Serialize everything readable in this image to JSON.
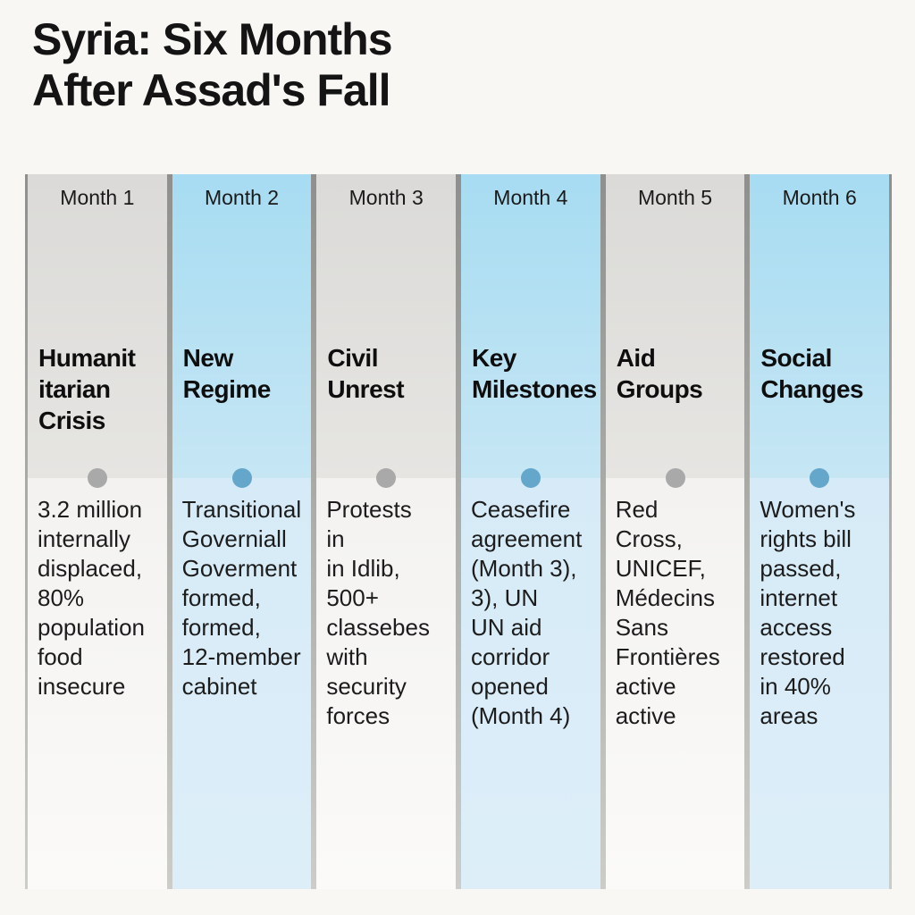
{
  "title": "Syria: Six Months\nAfter Assad's Fall",
  "columns": [
    {
      "month": "Month 1",
      "theme": "gray",
      "heading": "Humanit\nitarian\nCrisis",
      "body": "3.2 million\ninternally\ndisplaced,\n80%\npopulation\nfood\ninsecure"
    },
    {
      "month": "Month 2",
      "theme": "blue",
      "heading": "New\nRegime",
      "body": "Transitional\nGoverniall\nGoverment\nformed,\nformed,\n12-member\ncabinet"
    },
    {
      "month": "Month 3",
      "theme": "gray",
      "heading": "Civil\nUnrest",
      "body": "Protests\nin\nin Idlib,\n500+\nclassebes\nwith\nsecurity\nforces"
    },
    {
      "month": "Month 4",
      "theme": "blue",
      "heading": "Key\nMilestones",
      "body": "Ceasefire\nagreement\n(Month 3),\n3), UN\nUN aid\ncorridor\nopened\n(Month 4)"
    },
    {
      "month": "Month 5",
      "theme": "gray",
      "heading": "Aid\nGroups",
      "body": "Red\nCross,\nUNICEF,\nMédecins\nSans\nFrontières\nactive\nactive"
    },
    {
      "month": "Month 6",
      "theme": "blue",
      "heading": "Social\nChanges",
      "body": "Women's\nrights bill\npassed,\ninternet\naccess\nrestored\nin 40%\nareas"
    }
  ],
  "colors": {
    "background": "#f8f7f4",
    "text": "#141414",
    "gray_column_header": "#dbdad8",
    "blue_column_header": "#a7dcf2",
    "gray_column_body": "#f3f2f0",
    "blue_column_body": "#d6ebf7",
    "gray_dot": "#a9a9a9",
    "blue_dot": "#64a7cb",
    "column_border": "#a0a09d"
  }
}
